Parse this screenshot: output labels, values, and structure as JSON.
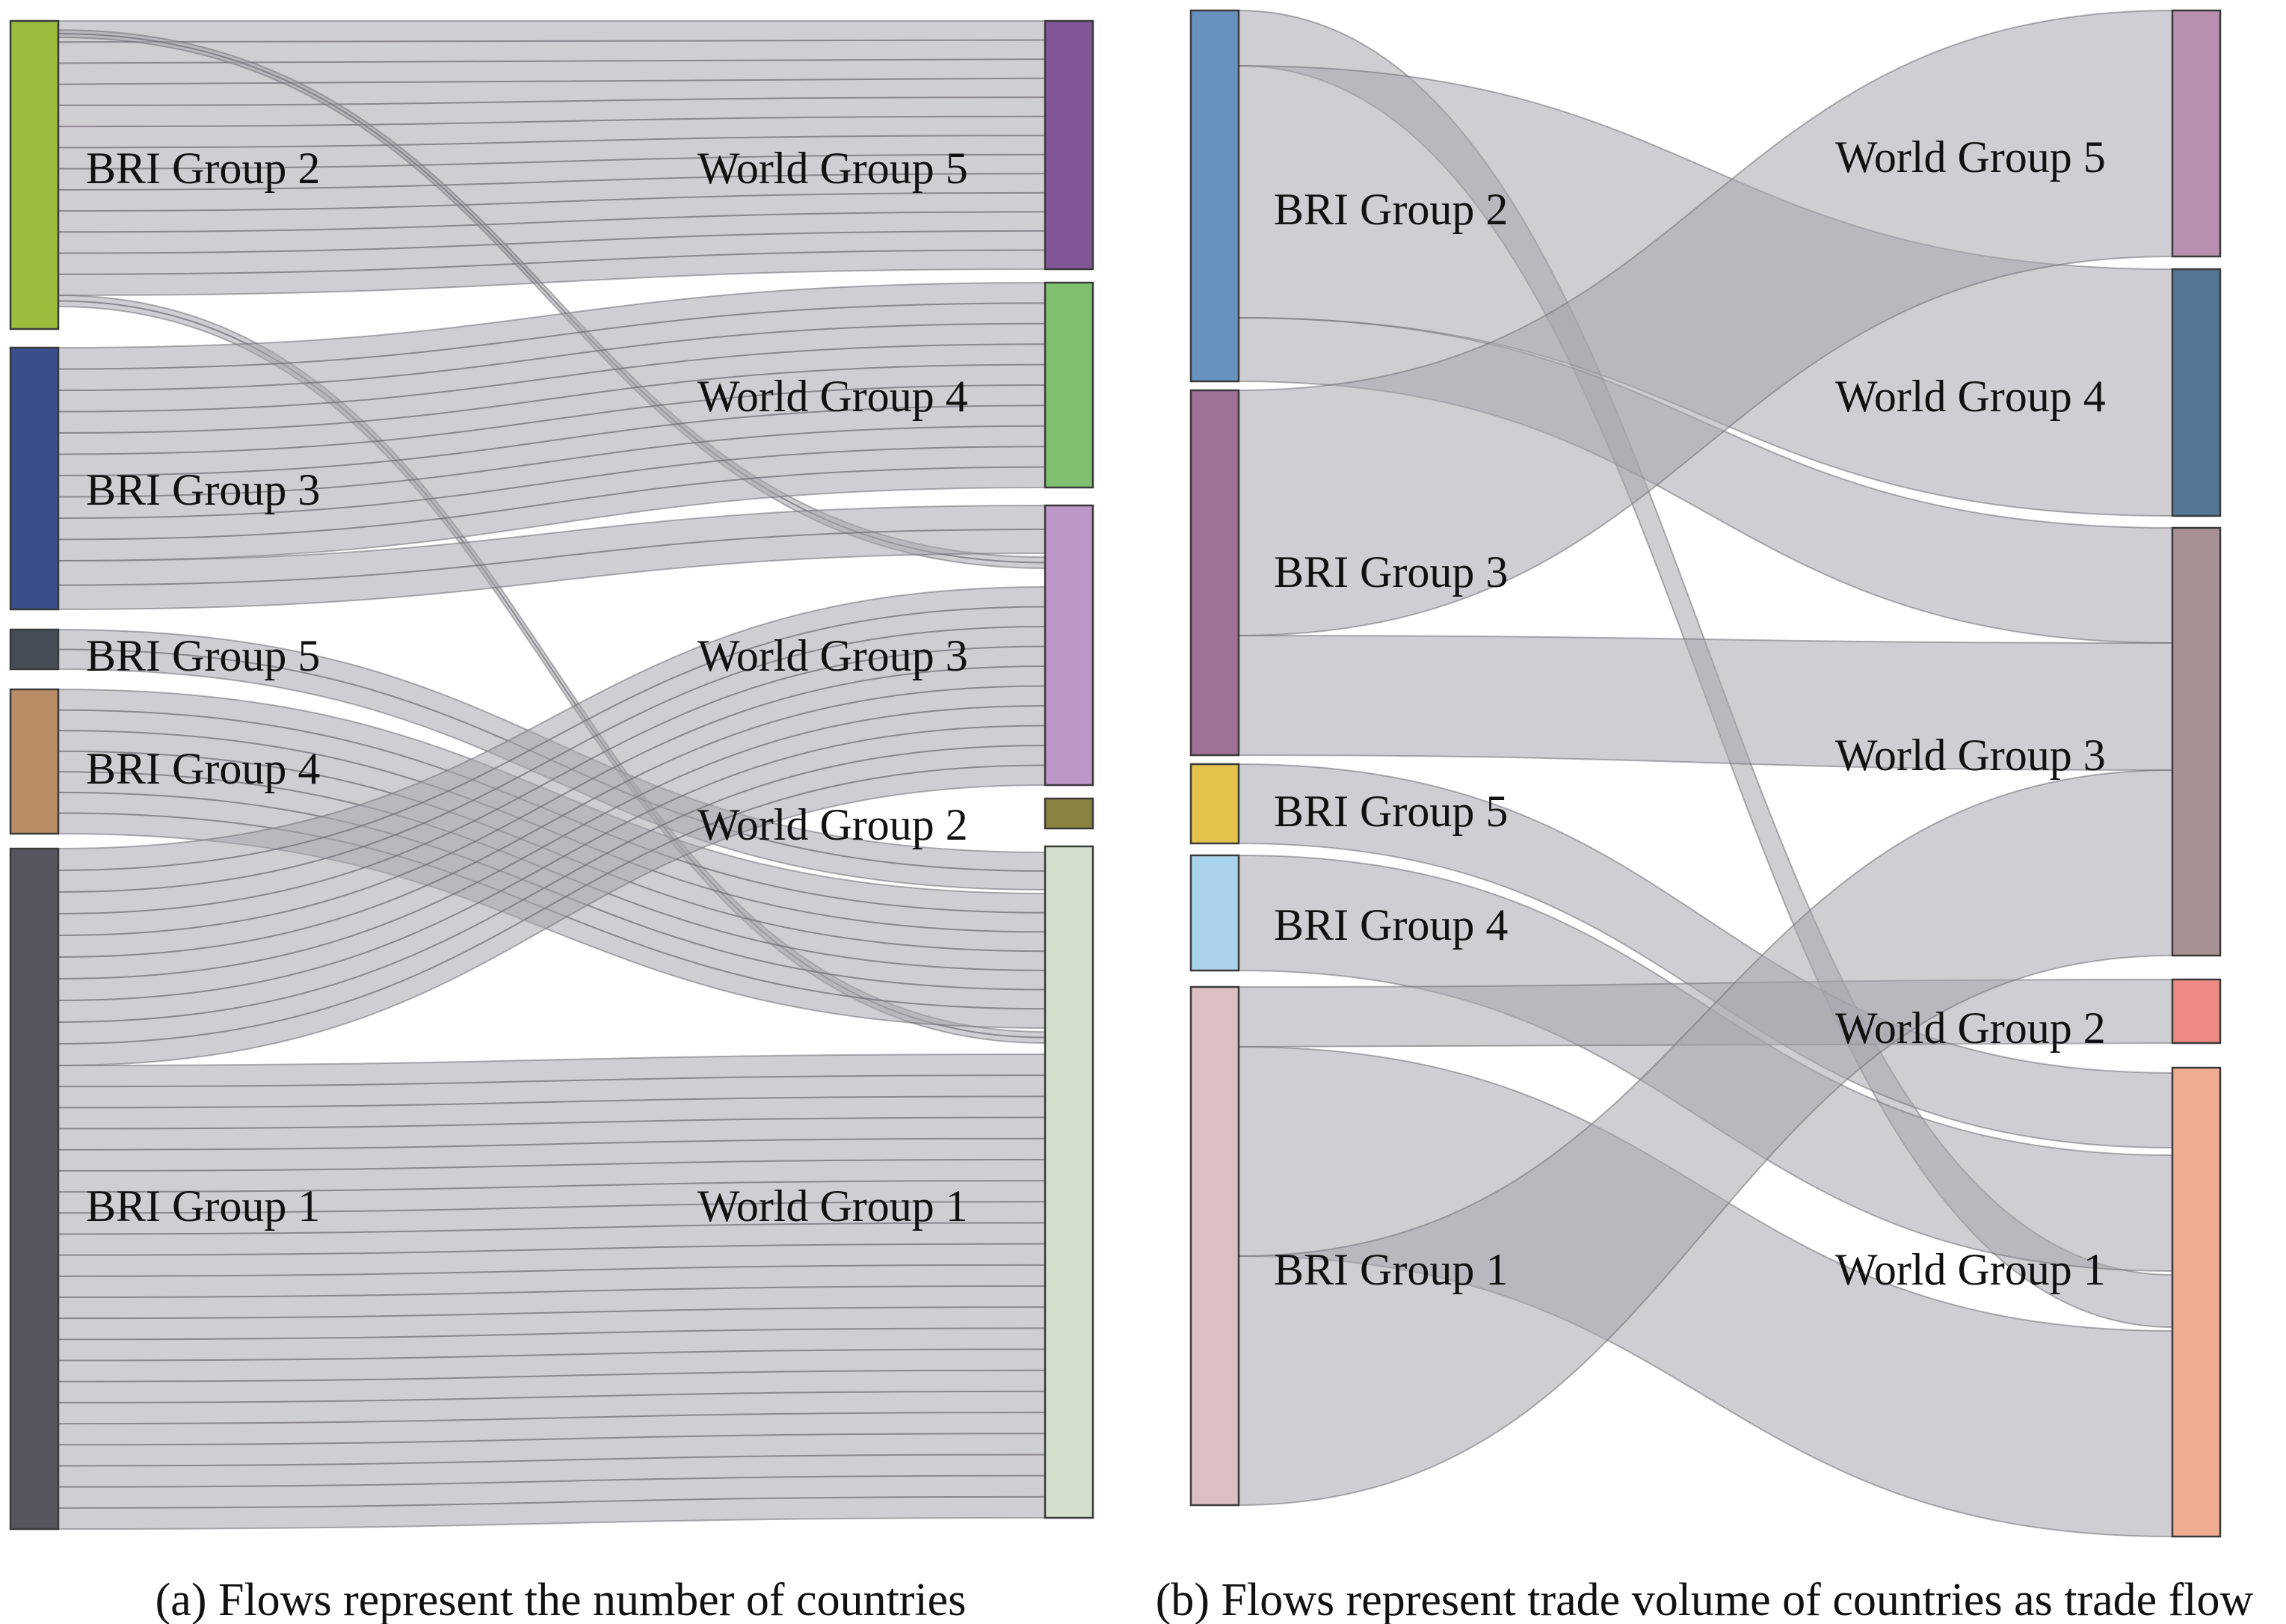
{
  "panels": [
    {
      "caption": "(a) Flows represent the number of countries",
      "sources": [
        {
          "id": "bri2",
          "label": "BRI Group 2",
          "color": "#9bbd3e"
        },
        {
          "id": "bri3",
          "label": "BRI Group 3",
          "color": "#3a4e8c"
        },
        {
          "id": "bri5",
          "label": "BRI Group 5",
          "color": "#454c55"
        },
        {
          "id": "bri4",
          "label": "BRI Group 4",
          "color": "#b88d66"
        },
        {
          "id": "bri1",
          "label": "BRI Group 1",
          "color": "#575560"
        }
      ],
      "targets": [
        {
          "id": "w5",
          "label": "World Group 5",
          "color": "#825596"
        },
        {
          "id": "w4",
          "label": "World Group 4",
          "color": "#7ec070"
        },
        {
          "id": "w3",
          "label": "World Group 3",
          "color": "#bb96c6"
        },
        {
          "id": "w2",
          "label": "World Group 2",
          "color": "#8a8340"
        },
        {
          "id": "w1",
          "label": "World Group 1",
          "color": "#d3e0cb"
        }
      ]
    },
    {
      "caption": "(b) Flows represent trade volume of countries as trade flow",
      "sources": [
        {
          "id": "bri2",
          "label": "BRI Group 2",
          "color": "#6792bd"
        },
        {
          "id": "bri3",
          "label": "BRI Group 3",
          "color": "#9e7096"
        },
        {
          "id": "bri5",
          "label": "BRI Group 5",
          "color": "#e3c24c"
        },
        {
          "id": "bri4",
          "label": "BRI Group 4",
          "color": "#a9d4ec"
        },
        {
          "id": "bri1",
          "label": "BRI Group 1",
          "color": "#ddbec2"
        }
      ],
      "targets": [
        {
          "id": "w5",
          "label": "World Group 5",
          "color": "#b88fae"
        },
        {
          "id": "w4",
          "label": "World Group 4",
          "color": "#537794"
        },
        {
          "id": "w3",
          "label": "World Group 3",
          "color": "#a89194"
        },
        {
          "id": "w2",
          "label": "World Group 2",
          "color": "#ee8a84"
        },
        {
          "id": "w1",
          "label": "World Group 1",
          "color": "#f0ac90"
        }
      ]
    }
  ]
}
